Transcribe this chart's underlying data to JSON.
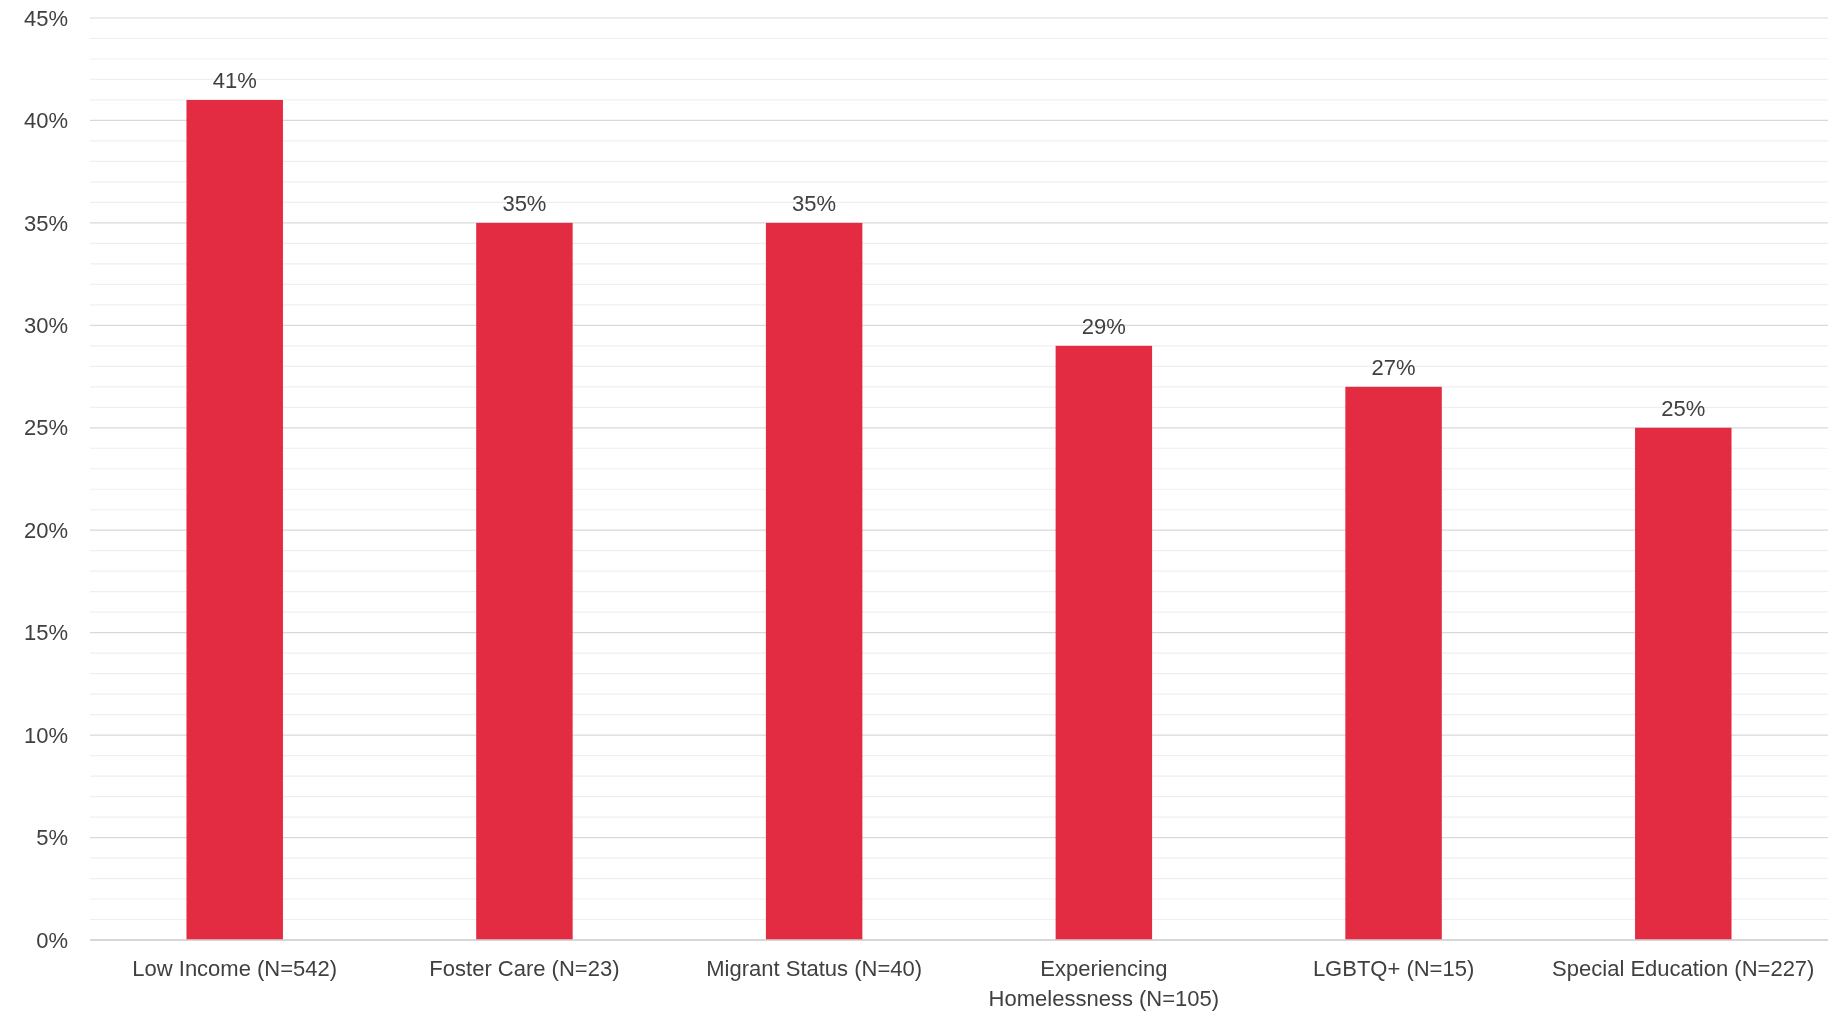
{
  "chart_data": {
    "type": "bar",
    "categories": [
      "Low Income (N=542)",
      "Foster Care (N=23)",
      "Migrant Status (N=40)",
      "Experiencing Homelessness (N=105)",
      "LGBTQ+ (N=15)",
      "Special Education (N=227)"
    ],
    "values": [
      41,
      35,
      35,
      29,
      27,
      25
    ],
    "color": "#e32b42",
    "value_labels": [
      "41%",
      "35%",
      "35%",
      "29%",
      "27%",
      "25%"
    ],
    "ylim": [
      0,
      45
    ],
    "yticks": [
      {
        "value": 0,
        "label": "0%"
      },
      {
        "value": 1,
        "label": null
      },
      {
        "value": 2,
        "label": null
      },
      {
        "value": 3,
        "label": null
      },
      {
        "value": 4,
        "label": null
      },
      {
        "value": 5,
        "label": "5%"
      },
      {
        "value": 6,
        "label": null
      },
      {
        "value": 7,
        "label": null
      },
      {
        "value": 8,
        "label": null
      },
      {
        "value": 9,
        "label": null
      },
      {
        "value": 10,
        "label": "10%"
      },
      {
        "value": 11,
        "label": null
      },
      {
        "value": 12,
        "label": null
      },
      {
        "value": 13,
        "label": null
      },
      {
        "value": 14,
        "label": null
      },
      {
        "value": 15,
        "label": "15%"
      },
      {
        "value": 16,
        "label": null
      },
      {
        "value": 17,
        "label": null
      },
      {
        "value": 18,
        "label": null
      },
      {
        "value": 19,
        "label": null
      },
      {
        "value": 20,
        "label": "20%"
      },
      {
        "value": 21,
        "label": null
      },
      {
        "value": 22,
        "label": null
      },
      {
        "value": 23,
        "label": null
      },
      {
        "value": 24,
        "label": null
      },
      {
        "value": 25,
        "label": "25%"
      },
      {
        "value": 26,
        "label": null
      },
      {
        "value": 27,
        "label": null
      },
      {
        "value": 28,
        "label": null
      },
      {
        "value": 29,
        "label": null
      },
      {
        "value": 30,
        "label": "30%"
      },
      {
        "value": 31,
        "label": null
      },
      {
        "value": 32,
        "label": null
      },
      {
        "value": 33,
        "label": null
      },
      {
        "value": 34,
        "label": null
      },
      {
        "value": 35,
        "label": "35%"
      },
      {
        "value": 36,
        "label": null
      },
      {
        "value": 37,
        "label": null
      },
      {
        "value": 38,
        "label": null
      },
      {
        "value": 39,
        "label": null
      },
      {
        "value": 40,
        "label": "40%"
      },
      {
        "value": 41,
        "label": null
      },
      {
        "value": 42,
        "label": null
      },
      {
        "value": 43,
        "label": null
      },
      {
        "value": 44,
        "label": null
      },
      {
        "value": 45,
        "label": "45%"
      }
    ],
    "grid": "y"
  }
}
